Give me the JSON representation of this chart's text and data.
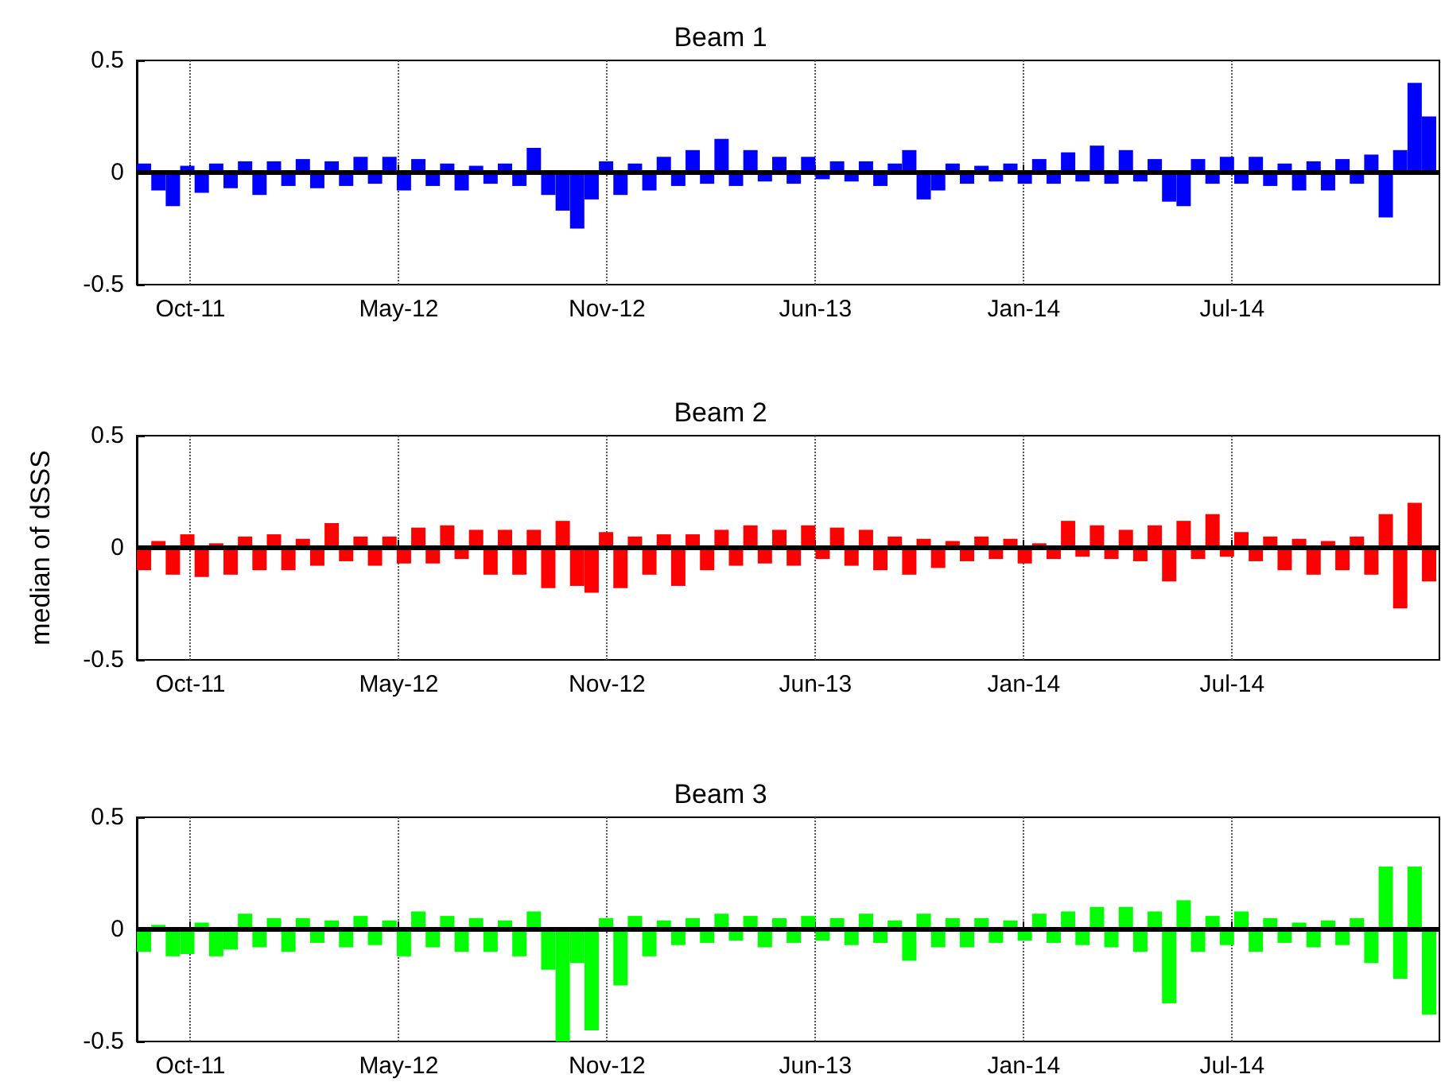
{
  "chart_data": [
    {
      "type": "bar",
      "title": "Beam 1",
      "color": "#0000ff",
      "grid": "x",
      "xlim": [
        "2011-08-27",
        "2015-02-10"
      ],
      "ylim": [
        -0.5,
        0.5
      ],
      "yticks": [
        -0.5,
        0,
        0.5
      ],
      "xticks": [
        {
          "value": "2011-10-18",
          "label": "Oct-11"
        },
        {
          "value": "2012-05-07",
          "label": "May-12"
        },
        {
          "value": "2012-11-25",
          "label": "Nov-12"
        },
        {
          "value": "2013-06-15",
          "label": "Jun-13"
        },
        {
          "value": "2014-01-03",
          "label": "Jan-14"
        },
        {
          "value": "2014-07-24",
          "label": "Jul-14"
        }
      ],
      "ref_lines": [
        {
          "axis": "y",
          "value": 0,
          "color": "#000000"
        }
      ],
      "x": [
        "2011-09-03",
        "2011-09-17",
        "2011-10-01",
        "2011-10-15",
        "2011-10-29",
        "2011-11-12",
        "2011-11-26",
        "2011-12-10",
        "2011-12-24",
        "2012-01-07",
        "2012-01-21",
        "2012-02-04",
        "2012-02-18",
        "2012-03-03",
        "2012-03-17",
        "2012-03-31",
        "2012-04-14",
        "2012-04-28",
        "2012-05-12",
        "2012-05-26",
        "2012-06-09",
        "2012-06-23",
        "2012-07-07",
        "2012-07-21",
        "2012-08-04",
        "2012-08-18",
        "2012-09-01",
        "2012-09-15",
        "2012-09-29",
        "2012-10-13",
        "2012-10-27",
        "2012-11-10",
        "2012-11-24",
        "2012-12-08",
        "2012-12-22",
        "2013-01-05",
        "2013-01-19",
        "2013-02-02",
        "2013-02-16",
        "2013-03-02",
        "2013-03-16",
        "2013-03-30",
        "2013-04-13",
        "2013-04-27",
        "2013-05-11",
        "2013-05-25",
        "2013-06-08",
        "2013-06-22",
        "2013-07-06",
        "2013-07-20",
        "2013-08-03",
        "2013-08-17",
        "2013-08-31",
        "2013-09-14",
        "2013-09-28",
        "2013-10-12",
        "2013-10-26",
        "2013-11-09",
        "2013-11-23",
        "2013-12-07",
        "2013-12-21",
        "2014-01-04",
        "2014-01-18",
        "2014-02-01",
        "2014-02-15",
        "2014-03-01",
        "2014-03-15",
        "2014-03-29",
        "2014-04-12",
        "2014-04-26",
        "2014-05-10",
        "2014-05-24",
        "2014-06-07",
        "2014-06-21",
        "2014-07-05",
        "2014-07-19",
        "2014-08-02",
        "2014-08-16",
        "2014-08-30",
        "2014-09-13",
        "2014-09-27",
        "2014-10-11",
        "2014-10-25",
        "2014-11-08",
        "2014-11-22",
        "2014-12-06",
        "2014-12-20",
        "2015-01-03",
        "2015-01-17",
        "2015-01-31"
      ],
      "values": [
        0.04,
        -0.08,
        -0.15,
        0.03,
        -0.09,
        0.04,
        -0.07,
        0.05,
        -0.1,
        0.05,
        -0.06,
        0.06,
        -0.07,
        0.05,
        -0.06,
        0.07,
        -0.05,
        0.07,
        -0.08,
        0.06,
        -0.06,
        0.04,
        -0.08,
        0.03,
        -0.05,
        0.04,
        -0.06,
        0.11,
        -0.1,
        -0.17,
        -0.25,
        -0.12,
        0.05,
        -0.1,
        0.04,
        -0.08,
        0.07,
        -0.06,
        0.1,
        -0.05,
        0.15,
        -0.06,
        0.1,
        -0.04,
        0.07,
        -0.05,
        0.07,
        -0.03,
        0.05,
        -0.04,
        0.05,
        -0.06,
        0.04,
        0.1,
        -0.12,
        -0.08,
        0.04,
        -0.05,
        0.03,
        -0.04,
        0.04,
        -0.05,
        0.06,
        -0.05,
        0.09,
        -0.04,
        0.12,
        -0.05,
        0.1,
        -0.04,
        0.06,
        -0.13,
        -0.15,
        0.06,
        -0.05,
        0.07,
        -0.05,
        0.07,
        -0.06,
        0.04,
        -0.08,
        0.05,
        -0.08,
        0.06,
        -0.05,
        0.08,
        -0.2,
        0.1,
        0.4,
        0.25
      ]
    },
    {
      "type": "bar",
      "title": "Beam 2",
      "ylabel": "median of dSSS",
      "color": "#ff0000",
      "grid": "x",
      "xlim": [
        "2011-08-27",
        "2015-02-10"
      ],
      "ylim": [
        -0.5,
        0.5
      ],
      "yticks": [
        -0.5,
        0,
        0.5
      ],
      "xticks": [
        {
          "value": "2011-10-18",
          "label": "Oct-11"
        },
        {
          "value": "2012-05-07",
          "label": "May-12"
        },
        {
          "value": "2012-11-25",
          "label": "Nov-12"
        },
        {
          "value": "2013-06-15",
          "label": "Jun-13"
        },
        {
          "value": "2014-01-03",
          "label": "Jan-14"
        },
        {
          "value": "2014-07-24",
          "label": "Jul-14"
        }
      ],
      "ref_lines": [
        {
          "axis": "y",
          "value": 0,
          "color": "#000000"
        }
      ],
      "x": [
        "2011-09-03",
        "2011-09-17",
        "2011-10-01",
        "2011-10-15",
        "2011-10-29",
        "2011-11-12",
        "2011-11-26",
        "2011-12-10",
        "2011-12-24",
        "2012-01-07",
        "2012-01-21",
        "2012-02-04",
        "2012-02-18",
        "2012-03-03",
        "2012-03-17",
        "2012-03-31",
        "2012-04-14",
        "2012-04-28",
        "2012-05-12",
        "2012-05-26",
        "2012-06-09",
        "2012-06-23",
        "2012-07-07",
        "2012-07-21",
        "2012-08-04",
        "2012-08-18",
        "2012-09-01",
        "2012-09-15",
        "2012-09-29",
        "2012-10-13",
        "2012-10-27",
        "2012-11-10",
        "2012-11-24",
        "2012-12-08",
        "2012-12-22",
        "2013-01-05",
        "2013-01-19",
        "2013-02-02",
        "2013-02-16",
        "2013-03-02",
        "2013-03-16",
        "2013-03-30",
        "2013-04-13",
        "2013-04-27",
        "2013-05-11",
        "2013-05-25",
        "2013-06-08",
        "2013-06-22",
        "2013-07-06",
        "2013-07-20",
        "2013-08-03",
        "2013-08-17",
        "2013-08-31",
        "2013-09-14",
        "2013-09-28",
        "2013-10-12",
        "2013-10-26",
        "2013-11-09",
        "2013-11-23",
        "2013-12-07",
        "2013-12-21",
        "2014-01-04",
        "2014-01-18",
        "2014-02-01",
        "2014-02-15",
        "2014-03-01",
        "2014-03-15",
        "2014-03-29",
        "2014-04-12",
        "2014-04-26",
        "2014-05-10",
        "2014-05-24",
        "2014-06-07",
        "2014-06-21",
        "2014-07-05",
        "2014-07-19",
        "2014-08-02",
        "2014-08-16",
        "2014-08-30",
        "2014-09-13",
        "2014-09-27",
        "2014-10-11",
        "2014-10-25",
        "2014-11-08",
        "2014-11-22",
        "2014-12-06",
        "2014-12-20",
        "2015-01-03",
        "2015-01-17",
        "2015-01-31"
      ],
      "values": [
        -0.1,
        0.03,
        -0.12,
        0.06,
        -0.13,
        0.02,
        -0.12,
        0.05,
        -0.1,
        0.06,
        -0.1,
        0.04,
        -0.08,
        0.11,
        -0.06,
        0.05,
        -0.08,
        0.05,
        -0.07,
        0.09,
        -0.07,
        0.1,
        -0.05,
        0.08,
        -0.12,
        0.08,
        -0.12,
        0.08,
        -0.18,
        0.12,
        -0.17,
        -0.2,
        0.07,
        -0.18,
        0.05,
        -0.12,
        0.06,
        -0.17,
        0.06,
        -0.1,
        0.08,
        -0.08,
        0.1,
        -0.07,
        0.08,
        -0.08,
        0.1,
        -0.05,
        0.09,
        -0.08,
        0.08,
        -0.1,
        0.05,
        -0.12,
        0.04,
        -0.09,
        0.03,
        -0.06,
        0.05,
        -0.05,
        0.04,
        -0.07,
        0.02,
        -0.05,
        0.12,
        -0.04,
        0.1,
        -0.05,
        0.08,
        -0.06,
        0.1,
        -0.15,
        0.12,
        -0.05,
        0.15,
        -0.04,
        0.07,
        -0.06,
        0.05,
        -0.1,
        0.04,
        -0.12,
        0.03,
        -0.1,
        0.05,
        -0.12,
        0.15,
        -0.27,
        0.2,
        -0.15
      ]
    },
    {
      "type": "bar",
      "title": "Beam 3",
      "color": "#00ff00",
      "grid": "x",
      "xlim": [
        "2011-08-27",
        "2015-02-10"
      ],
      "ylim": [
        -0.5,
        0.5
      ],
      "yticks": [
        -0.5,
        0,
        0.5
      ],
      "xticks": [
        {
          "value": "2011-10-18",
          "label": "Oct-11"
        },
        {
          "value": "2012-05-07",
          "label": "May-12"
        },
        {
          "value": "2012-11-25",
          "label": "Nov-12"
        },
        {
          "value": "2013-06-15",
          "label": "Jun-13"
        },
        {
          "value": "2014-01-03",
          "label": "Jan-14"
        },
        {
          "value": "2014-07-24",
          "label": "Jul-14"
        }
      ],
      "ref_lines": [
        {
          "axis": "y",
          "value": 0,
          "color": "#000000"
        }
      ],
      "x": [
        "2011-09-03",
        "2011-09-17",
        "2011-10-01",
        "2011-10-15",
        "2011-10-29",
        "2011-11-12",
        "2011-11-26",
        "2011-12-10",
        "2011-12-24",
        "2012-01-07",
        "2012-01-21",
        "2012-02-04",
        "2012-02-18",
        "2012-03-03",
        "2012-03-17",
        "2012-03-31",
        "2012-04-14",
        "2012-04-28",
        "2012-05-12",
        "2012-05-26",
        "2012-06-09",
        "2012-06-23",
        "2012-07-07",
        "2012-07-21",
        "2012-08-04",
        "2012-08-18",
        "2012-09-01",
        "2012-09-15",
        "2012-09-29",
        "2012-10-13",
        "2012-10-27",
        "2012-11-10",
        "2012-11-24",
        "2012-12-08",
        "2012-12-22",
        "2013-01-05",
        "2013-01-19",
        "2013-02-02",
        "2013-02-16",
        "2013-03-02",
        "2013-03-16",
        "2013-03-30",
        "2013-04-13",
        "2013-04-27",
        "2013-05-11",
        "2013-05-25",
        "2013-06-08",
        "2013-06-22",
        "2013-07-06",
        "2013-07-20",
        "2013-08-03",
        "2013-08-17",
        "2013-08-31",
        "2013-09-14",
        "2013-09-28",
        "2013-10-12",
        "2013-10-26",
        "2013-11-09",
        "2013-11-23",
        "2013-12-07",
        "2013-12-21",
        "2014-01-04",
        "2014-01-18",
        "2014-02-01",
        "2014-02-15",
        "2014-03-01",
        "2014-03-15",
        "2014-03-29",
        "2014-04-12",
        "2014-04-26",
        "2014-05-10",
        "2014-05-24",
        "2014-06-07",
        "2014-06-21",
        "2014-07-05",
        "2014-07-19",
        "2014-08-02",
        "2014-08-16",
        "2014-08-30",
        "2014-09-13",
        "2014-09-27",
        "2014-10-11",
        "2014-10-25",
        "2014-11-08",
        "2014-11-22",
        "2014-12-06",
        "2014-12-20",
        "2015-01-03",
        "2015-01-17",
        "2015-01-31"
      ],
      "values": [
        -0.1,
        0.02,
        -0.12,
        -0.11,
        0.03,
        -0.12,
        -0.09,
        0.07,
        -0.08,
        0.05,
        -0.1,
        0.05,
        -0.06,
        0.04,
        -0.08,
        0.06,
        -0.07,
        0.04,
        -0.12,
        0.08,
        -0.08,
        0.06,
        -0.1,
        0.05,
        -0.1,
        0.04,
        -0.12,
        0.08,
        -0.18,
        -0.5,
        -0.15,
        -0.45,
        0.05,
        -0.25,
        0.06,
        -0.12,
        0.04,
        -0.07,
        0.05,
        -0.06,
        0.07,
        -0.05,
        0.06,
        -0.08,
        0.05,
        -0.06,
        0.06,
        -0.05,
        0.05,
        -0.07,
        0.07,
        -0.06,
        0.04,
        -0.14,
        0.07,
        -0.08,
        0.05,
        -0.08,
        0.05,
        -0.06,
        0.04,
        -0.05,
        0.07,
        -0.06,
        0.08,
        -0.07,
        0.1,
        -0.08,
        0.1,
        -0.1,
        0.08,
        -0.33,
        0.13,
        -0.1,
        0.06,
        -0.07,
        0.08,
        -0.1,
        0.05,
        -0.06,
        0.03,
        -0.08,
        0.04,
        -0.07,
        0.05,
        -0.15,
        0.28,
        -0.22,
        0.28,
        -0.38
      ]
    }
  ]
}
